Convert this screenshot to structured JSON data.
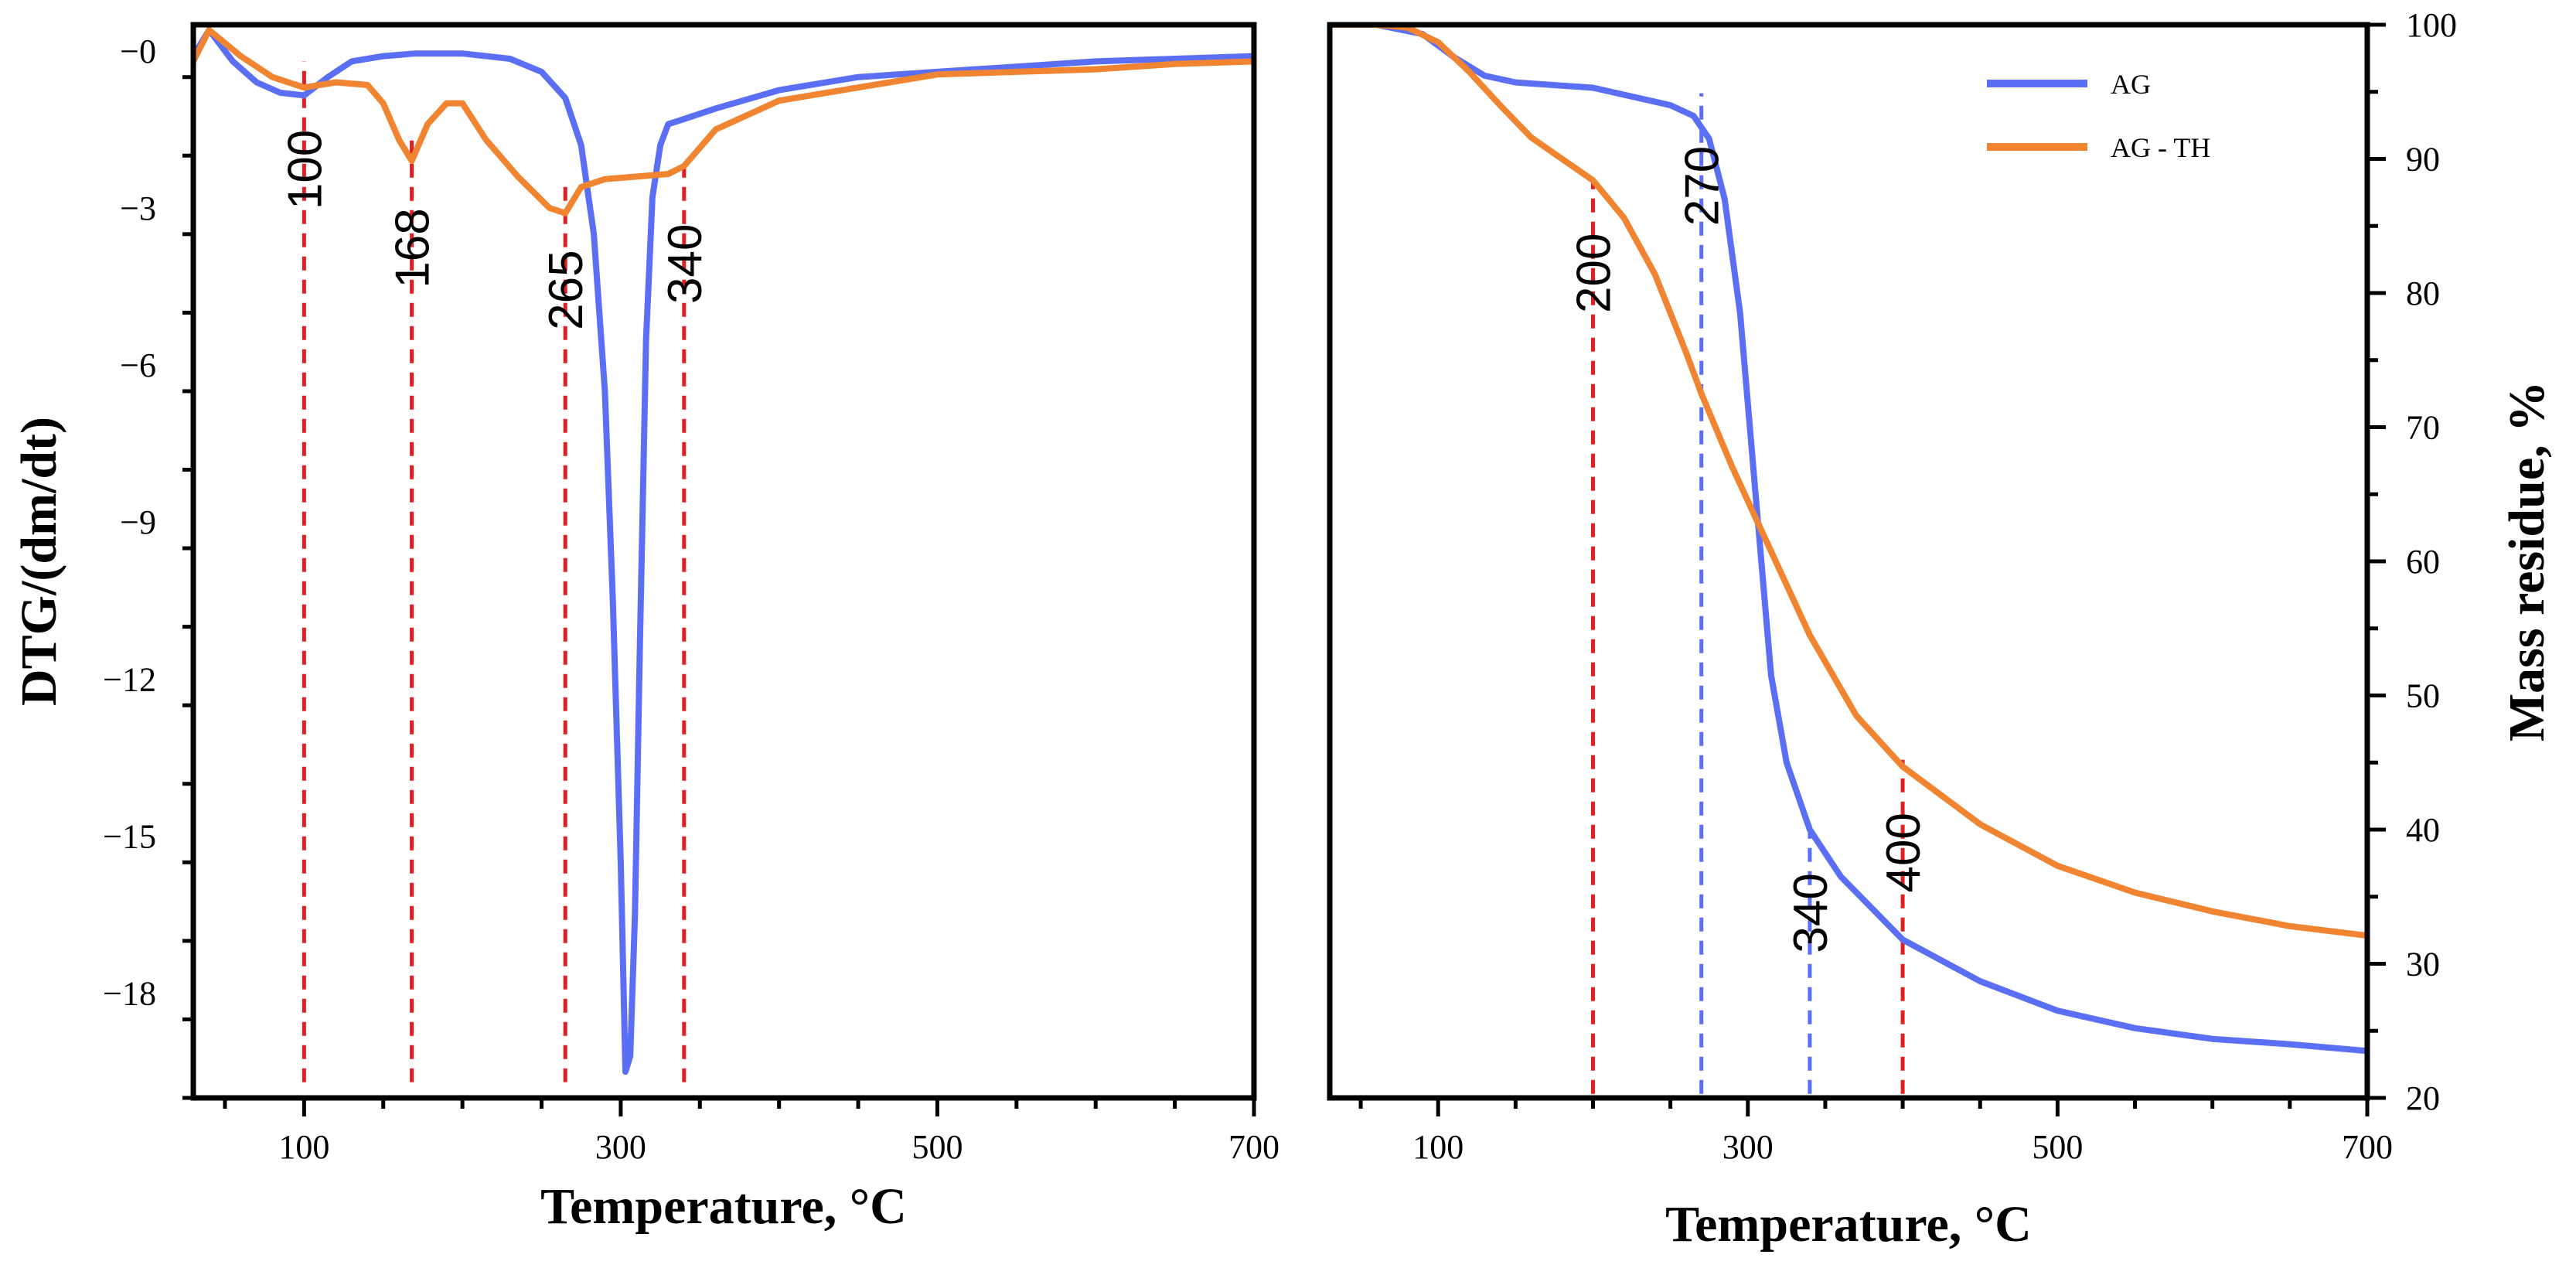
{
  "chart_data": [
    {
      "type": "line",
      "panel": "left",
      "title": "",
      "xlabel": "Temperature, °C",
      "ylabel": "DTG/(dm/dt)",
      "xlim": [
        30,
        700
      ],
      "ylim": [
        -20,
        0.5
      ],
      "xticks": [
        100,
        300,
        500,
        700
      ],
      "xtick_labels": [
        "100",
        "300",
        "500",
        "700"
      ],
      "yticks": [
        0,
        -3,
        -6,
        -9,
        -12,
        -15,
        -18
      ],
      "ytick_labels": [
        "−0",
        "−3",
        "−6",
        "−9",
        "−12",
        "−15",
        "−18"
      ],
      "legend": null,
      "series": [
        {
          "name": "AG",
          "color": "#5b6ff5",
          "x": [
            30,
            40,
            55,
            70,
            85,
            100,
            115,
            130,
            150,
            170,
            200,
            230,
            250,
            265,
            275,
            283,
            290,
            295,
            300,
            303,
            306,
            309,
            312,
            316,
            320,
            325,
            330,
            340,
            360,
            400,
            450,
            500,
            550,
            600,
            650,
            700
          ],
          "y": [
            -0.1,
            0.4,
            -0.2,
            -0.6,
            -0.8,
            -0.85,
            -0.5,
            -0.2,
            -0.1,
            -0.05,
            -0.05,
            -0.15,
            -0.4,
            -0.9,
            -1.8,
            -3.5,
            -6.5,
            -10.5,
            -15.5,
            -19.5,
            -19.2,
            -16.5,
            -11.5,
            -5.5,
            -2.8,
            -1.8,
            -1.4,
            -1.3,
            -1.1,
            -0.75,
            -0.5,
            -0.4,
            -0.3,
            -0.2,
            -0.15,
            -0.1
          ]
        },
        {
          "name": "AG - TH",
          "color": "#f08431",
          "x": [
            30,
            40,
            60,
            80,
            100,
            120,
            140,
            150,
            160,
            168,
            178,
            190,
            200,
            215,
            235,
            255,
            265,
            275,
            290,
            310,
            330,
            340,
            360,
            400,
            450,
            500,
            550,
            600,
            650,
            700
          ],
          "y": [
            -0.2,
            0.4,
            -0.1,
            -0.5,
            -0.7,
            -0.6,
            -0.65,
            -1.0,
            -1.7,
            -2.1,
            -1.4,
            -1.0,
            -1.0,
            -1.7,
            -2.4,
            -3.0,
            -3.1,
            -2.6,
            -2.45,
            -2.4,
            -2.35,
            -2.2,
            -1.5,
            -0.95,
            -0.7,
            -0.45,
            -0.4,
            -0.35,
            -0.25,
            -0.2
          ]
        }
      ],
      "annotations": [
        {
          "x": 100,
          "text": "100",
          "color": "#e02020",
          "y_from": -19.7,
          "y_to": -0.2
        },
        {
          "x": 168,
          "text": "168",
          "color": "#e02020",
          "y_from": -19.7,
          "y_to": -1.7
        },
        {
          "x": 265,
          "text": "265",
          "color": "#e02020",
          "y_from": -19.7,
          "y_to": -2.5
        },
        {
          "x": 340,
          "text": "340",
          "color": "#e02020",
          "y_from": -19.7,
          "y_to": -2.0
        }
      ]
    },
    {
      "type": "line",
      "panel": "right",
      "title": "",
      "xlabel": "Temperature, °C",
      "ylabel": "Mass residue, %",
      "xlim": [
        30,
        700
      ],
      "ylim": [
        20,
        100
      ],
      "xticks": [
        100,
        300,
        500,
        700
      ],
      "xtick_labels": [
        "100",
        "300",
        "500",
        "700"
      ],
      "yticks": [
        20,
        30,
        40,
        50,
        60,
        70,
        80,
        90,
        100
      ],
      "ytick_labels": [
        "20",
        "30",
        "40",
        "50",
        "60",
        "70",
        "80",
        "90",
        "100"
      ],
      "legend": "top-right",
      "series": [
        {
          "name": "AG",
          "color": "#5b6ff5",
          "x": [
            30,
            60,
            90,
            110,
            130,
            150,
            200,
            250,
            265,
            275,
            285,
            295,
            305,
            315,
            325,
            340,
            360,
            400,
            450,
            500,
            550,
            600,
            650,
            700
          ],
          "y": [
            100,
            100,
            99.3,
            97.6,
            96.2,
            95.7,
            95.3,
            94,
            93.2,
            91.5,
            87,
            78.5,
            65,
            51.5,
            45,
            40,
            36.5,
            31.8,
            28.7,
            26.5,
            25.2,
            24.4,
            24,
            23.5
          ]
        },
        {
          "name": "AG - TH",
          "color": "#f08431",
          "x": [
            30,
            60,
            80,
            100,
            120,
            140,
            160,
            180,
            200,
            220,
            240,
            260,
            270,
            290,
            310,
            340,
            370,
            400,
            450,
            500,
            550,
            600,
            650,
            700
          ],
          "y": [
            100,
            100,
            99.8,
            98.7,
            96.5,
            94,
            91.6,
            90,
            88.4,
            85.6,
            81.4,
            75.6,
            72.5,
            67,
            62,
            54.5,
            48.5,
            44.7,
            40.4,
            37.3,
            35.3,
            33.9,
            32.8,
            32.1
          ]
        }
      ],
      "annotations": [
        {
          "x": 200,
          "text": "200",
          "color": "#e02020",
          "y_from": 20.3,
          "y_to": 88.4
        },
        {
          "x": 270,
          "text": "270",
          "color": "#5b6ff5",
          "y_from": 20.3,
          "y_to": 94.9
        },
        {
          "x": 340,
          "text": "340",
          "color": "#5b6ff5",
          "y_from": 20.3,
          "y_to": 40.7
        },
        {
          "x": 400,
          "text": "400",
          "color": "#e02020",
          "y_from": 20.3,
          "y_to": 45.2
        }
      ]
    }
  ]
}
